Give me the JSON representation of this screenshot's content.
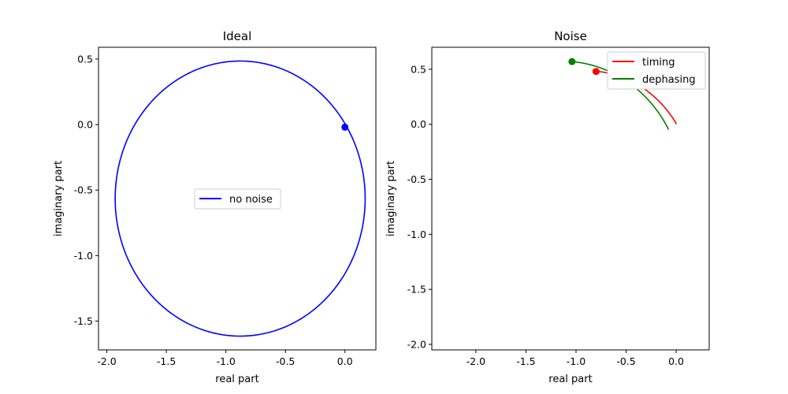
{
  "chart_data": [
    {
      "type": "line",
      "title": "Ideal",
      "xlabel": "real part",
      "ylabel": "imaginary part",
      "xlim": [
        -2.07,
        0.26
      ],
      "ylim": [
        -1.72,
        0.59
      ],
      "xticks": [
        -2.0,
        -1.5,
        -1.0,
        -0.5,
        0.0
      ],
      "xtick_labels": [
        "-2.0",
        "-1.5",
        "-1.0",
        "-0.5",
        "0.0"
      ],
      "yticks": [
        0.5,
        0.0,
        -0.5,
        -1.0,
        -1.5
      ],
      "ytick_labels": [
        "0.5",
        "0.0",
        "-0.5",
        "-1.0",
        "-1.5"
      ],
      "legend_position": "center",
      "grid": false,
      "series": [
        {
          "name": "no noise",
          "color": "#0000ff",
          "shape": "ellipse",
          "center": [
            -0.88,
            -0.565
          ],
          "radius": [
            1.05,
            1.05
          ],
          "start": [
            0.0,
            -0.02
          ],
          "end_marker": [
            0.0,
            -0.02
          ]
        }
      ]
    },
    {
      "type": "line",
      "title": "Noise",
      "xlabel": "real part",
      "ylabel": "imaginary part",
      "xlim": [
        -2.44,
        0.33
      ],
      "ylim": [
        -2.05,
        0.7
      ],
      "xticks": [
        -2.0,
        -1.5,
        -1.0,
        -0.5,
        0.0
      ],
      "xtick_labels": [
        "-2.0",
        "-1.5",
        "-1.0",
        "-0.5",
        "0.0"
      ],
      "yticks": [
        0.5,
        0.0,
        -0.5,
        -1.0,
        -1.5,
        -2.0
      ],
      "ytick_labels": [
        "0.5",
        "0.0",
        "-0.5",
        "-1.0",
        "-1.5",
        "-2.0"
      ],
      "legend_position": "upper right",
      "grid": false,
      "series": [
        {
          "name": "timing",
          "color": "#ff0000",
          "shape": "spiral",
          "center": [
            -0.88,
            -0.565
          ],
          "radius_start": 1.05,
          "radius_end": 1.05,
          "start": [
            0.0,
            0.0
          ],
          "end_marker": [
            -0.8,
            0.48
          ]
        },
        {
          "name": "dephasing",
          "color": "#008000",
          "shape": "spiral",
          "center": [
            -1.06,
            -0.68
          ],
          "radius_start": 1.17,
          "radius_end": 1.25,
          "start": [
            0.0,
            0.0
          ],
          "end_marker": [
            -1.04,
            0.57
          ]
        }
      ]
    }
  ]
}
